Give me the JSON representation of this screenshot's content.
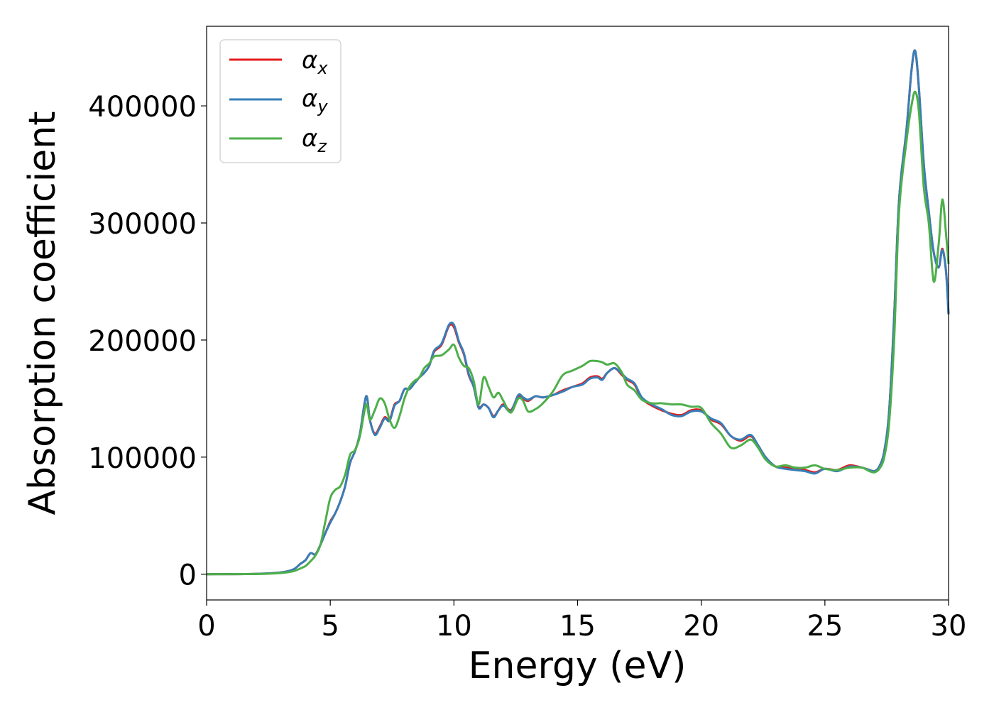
{
  "chart_data": {
    "type": "line",
    "xlabel": "Energy (eV)",
    "ylabel": "Absorption coefficient",
    "xlim": [
      0,
      30
    ],
    "ylim": [
      -22000,
      468000
    ],
    "xticks": [
      0,
      5,
      10,
      15,
      20,
      25,
      30
    ],
    "xtick_labels": [
      "0",
      "5",
      "10",
      "15",
      "20",
      "25",
      "30"
    ],
    "yticks": [
      0,
      100000,
      200000,
      300000,
      400000
    ],
    "ytick_labels": [
      "0",
      "100000",
      "200000",
      "300000",
      "400000"
    ],
    "grid": false,
    "legend": "top-left",
    "series": [
      {
        "name": "αx",
        "symbol": "α",
        "subscript": "x",
        "color": "#e41a1c",
        "x": [
          0,
          2,
          3,
          3.5,
          3.8,
          4.0,
          4.2,
          4.4,
          4.6,
          4.8,
          5.0,
          5.2,
          5.4,
          5.6,
          5.8,
          6.0,
          6.2,
          6.45,
          6.6,
          6.8,
          7.0,
          7.2,
          7.4,
          7.6,
          7.8,
          8.0,
          8.2,
          8.4,
          8.6,
          8.8,
          9.0,
          9.2,
          9.5,
          9.8,
          10.0,
          10.2,
          10.4,
          10.6,
          10.8,
          11.0,
          11.2,
          11.4,
          11.6,
          11.8,
          12.0,
          12.3,
          12.6,
          12.8,
          13.0,
          13.3,
          13.6,
          14.0,
          14.4,
          14.8,
          15.2,
          15.5,
          15.8,
          16.0,
          16.2,
          16.5,
          16.8,
          17.0,
          17.3,
          17.6,
          18.0,
          18.4,
          18.8,
          19.2,
          19.6,
          20.0,
          20.4,
          20.8,
          21.2,
          21.6,
          22.0,
          22.3,
          22.6,
          23.0,
          23.4,
          23.8,
          24.2,
          24.6,
          25.0,
          25.5,
          26.0,
          26.5,
          26.8,
          27.0,
          27.2,
          27.4,
          27.6,
          27.8,
          28.0,
          28.3,
          28.5,
          28.65,
          28.8,
          29.0,
          29.2,
          29.4,
          29.6,
          29.75,
          29.9,
          30.0
        ],
        "y": [
          0,
          300,
          1500,
          4000,
          9000,
          12000,
          18000,
          17000,
          25000,
          35000,
          45000,
          52000,
          62000,
          75000,
          95000,
          105000,
          120000,
          152000,
          132000,
          120000,
          126000,
          134000,
          132000,
          145000,
          148000,
          158000,
          158000,
          163000,
          168000,
          172000,
          178000,
          190000,
          196000,
          212000,
          211000,
          198000,
          188000,
          170000,
          160000,
          143000,
          145000,
          142000,
          135000,
          140000,
          145000,
          140000,
          152000,
          150000,
          148000,
          152000,
          151000,
          153000,
          157000,
          160000,
          163000,
          168000,
          169000,
          167000,
          172000,
          176000,
          170000,
          166000,
          162000,
          150000,
          144000,
          140000,
          137000,
          136000,
          140000,
          140000,
          132000,
          128000,
          118000,
          114000,
          118000,
          110000,
          100000,
          92000,
          91000,
          90000,
          89000,
          87000,
          90000,
          89000,
          93000,
          91000,
          89000,
          88000,
          92000,
          105000,
          140000,
          220000,
          320000,
          380000,
          430000,
          447000,
          415000,
          350000,
          310000,
          275000,
          262000,
          278000,
          258000,
          222000
        ]
      },
      {
        "name": "αy",
        "symbol": "α",
        "subscript": "y",
        "color": "#377eb8",
        "x": [
          0,
          2,
          3,
          3.5,
          3.8,
          4.0,
          4.2,
          4.4,
          4.6,
          4.8,
          5.0,
          5.2,
          5.4,
          5.6,
          5.8,
          6.0,
          6.2,
          6.45,
          6.6,
          6.8,
          7.0,
          7.2,
          7.4,
          7.6,
          7.8,
          8.0,
          8.2,
          8.4,
          8.6,
          8.8,
          9.0,
          9.2,
          9.5,
          9.8,
          10.0,
          10.2,
          10.4,
          10.6,
          10.8,
          11.0,
          11.2,
          11.4,
          11.6,
          11.8,
          12.0,
          12.3,
          12.6,
          12.8,
          13.0,
          13.3,
          13.6,
          14.0,
          14.4,
          14.8,
          15.2,
          15.5,
          15.8,
          16.0,
          16.2,
          16.5,
          16.8,
          17.0,
          17.3,
          17.6,
          18.0,
          18.4,
          18.8,
          19.2,
          19.6,
          20.0,
          20.4,
          20.8,
          21.2,
          21.6,
          22.0,
          22.3,
          22.6,
          23.0,
          23.4,
          23.8,
          24.2,
          24.6,
          25.0,
          25.5,
          26.0,
          26.5,
          26.8,
          27.0,
          27.2,
          27.4,
          27.6,
          27.8,
          28.0,
          28.3,
          28.5,
          28.65,
          28.8,
          29.0,
          29.2,
          29.4,
          29.6,
          29.75,
          29.9,
          30.0
        ],
        "y": [
          0,
          300,
          1500,
          4000,
          9000,
          12000,
          18000,
          17000,
          25000,
          35000,
          44000,
          52000,
          62000,
          75000,
          95000,
          105000,
          120000,
          152000,
          132000,
          119000,
          125000,
          133000,
          131000,
          144000,
          148000,
          158000,
          158000,
          163000,
          168000,
          172000,
          178000,
          191000,
          197000,
          213000,
          213000,
          199000,
          189000,
          171000,
          160000,
          142000,
          145000,
          142000,
          134000,
          140000,
          144000,
          139000,
          153000,
          151000,
          149000,
          152000,
          151000,
          153000,
          156000,
          160000,
          162000,
          167000,
          168000,
          166000,
          172000,
          176000,
          171000,
          167000,
          163000,
          151000,
          145000,
          141000,
          136000,
          135000,
          139000,
          139000,
          133000,
          129000,
          118000,
          115000,
          119000,
          110000,
          100000,
          92000,
          90000,
          89000,
          88000,
          86000,
          90000,
          88000,
          92000,
          91000,
          89000,
          88000,
          92000,
          105000,
          140000,
          220000,
          320000,
          380000,
          430000,
          447000,
          416000,
          350000,
          310000,
          275000,
          262000,
          277000,
          258000,
          222000
        ]
      },
      {
        "name": "αz",
        "symbol": "α",
        "subscript": "z",
        "color": "#4daf4a",
        "x": [
          0,
          2,
          3,
          3.5,
          3.8,
          4.0,
          4.2,
          4.4,
          4.6,
          4.8,
          5.0,
          5.2,
          5.4,
          5.6,
          5.8,
          6.0,
          6.2,
          6.45,
          6.6,
          6.8,
          7.0,
          7.2,
          7.4,
          7.6,
          7.8,
          8.0,
          8.2,
          8.4,
          8.6,
          8.8,
          9.0,
          9.2,
          9.5,
          9.8,
          10.0,
          10.2,
          10.4,
          10.6,
          10.8,
          11.0,
          11.2,
          11.4,
          11.6,
          11.8,
          12.0,
          12.3,
          12.6,
          12.8,
          13.0,
          13.3,
          13.6,
          14.0,
          14.4,
          14.8,
          15.2,
          15.5,
          15.8,
          16.0,
          16.2,
          16.5,
          16.8,
          17.0,
          17.3,
          17.6,
          18.0,
          18.4,
          18.8,
          19.2,
          19.6,
          20.0,
          20.4,
          20.8,
          21.2,
          21.6,
          22.0,
          22.3,
          22.6,
          23.0,
          23.4,
          23.8,
          24.2,
          24.6,
          25.0,
          25.5,
          26.0,
          26.5,
          26.8,
          27.0,
          27.2,
          27.4,
          27.6,
          27.8,
          28.0,
          28.3,
          28.5,
          28.65,
          28.8,
          29.0,
          29.2,
          29.4,
          29.6,
          29.75,
          29.9,
          30.0
        ],
        "y": [
          0,
          200,
          1000,
          2500,
          5000,
          7000,
          11000,
          16000,
          25000,
          45000,
          65000,
          72000,
          75000,
          85000,
          102000,
          106000,
          118000,
          145000,
          132000,
          140000,
          150000,
          146000,
          132000,
          125000,
          135000,
          150000,
          160000,
          165000,
          168000,
          176000,
          180000,
          186000,
          187000,
          192000,
          196000,
          185000,
          178000,
          176000,
          165000,
          145000,
          168000,
          160000,
          151000,
          155000,
          148000,
          138000,
          150000,
          148000,
          139000,
          141000,
          146000,
          156000,
          170000,
          174000,
          178000,
          182000,
          182000,
          181000,
          179000,
          180000,
          172000,
          162000,
          157000,
          149000,
          146000,
          146000,
          145000,
          145000,
          143000,
          142000,
          129000,
          120000,
          108000,
          110000,
          115000,
          108000,
          98000,
          92000,
          93000,
          91000,
          91000,
          93000,
          90000,
          89000,
          91000,
          91000,
          88000,
          87000,
          90000,
          100000,
          130000,
          200000,
          310000,
          370000,
          400000,
          412000,
          395000,
          330000,
          300000,
          250000,
          282000,
          320000,
          290000,
          265000
        ]
      }
    ]
  }
}
